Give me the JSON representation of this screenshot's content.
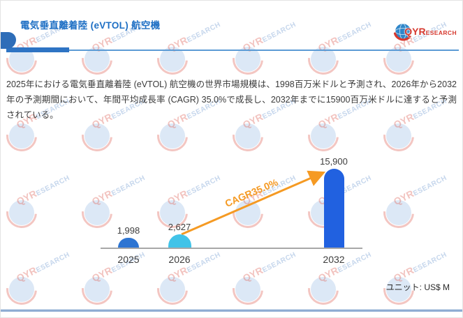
{
  "header": {
    "title": "電気垂直離着陸 (eVTOL) 航空機",
    "logo": {
      "text_bold": "QYR",
      "text_rest": "ESEARCH"
    }
  },
  "summary": {
    "text": "2025年における電気垂直離着陸 (eVTOL) 航空機の世界市場規模は、1998百万米ドルと予測され、2026年から2032年の予測期間において、年間平均成長率 (CAGR) 35.0%で成長し、2032年までに15900百万米ドルに達すると予測されている。"
  },
  "watermark": {
    "text_bold": "QYR",
    "text_rest": "ESEARCH"
  },
  "chart_data": {
    "type": "bar",
    "categories": [
      "2025",
      "2026",
      "2032"
    ],
    "values": [
      1998,
      2627,
      15900
    ],
    "value_labels": [
      "1,998",
      "2,627",
      "15,900"
    ],
    "bar_colors": [
      "#2e75d2",
      "#41c3e8",
      "#2161e0"
    ],
    "annotation": {
      "label": "CAGR35.0%",
      "color": "#f59a23"
    },
    "unit_label": "ユニット: US$ M",
    "xlabel": "",
    "ylabel": "",
    "ylim": [
      0,
      15900
    ],
    "grid": false,
    "legend": false
  },
  "colors": {
    "title_blue": "#1e6fc4",
    "divider_bar": "#2e74c4",
    "divider_line": "#5b9bd5",
    "axis_gray": "#a8a8a8",
    "arrow_orange": "#f59a23",
    "footer_line": "#8fadd3"
  }
}
